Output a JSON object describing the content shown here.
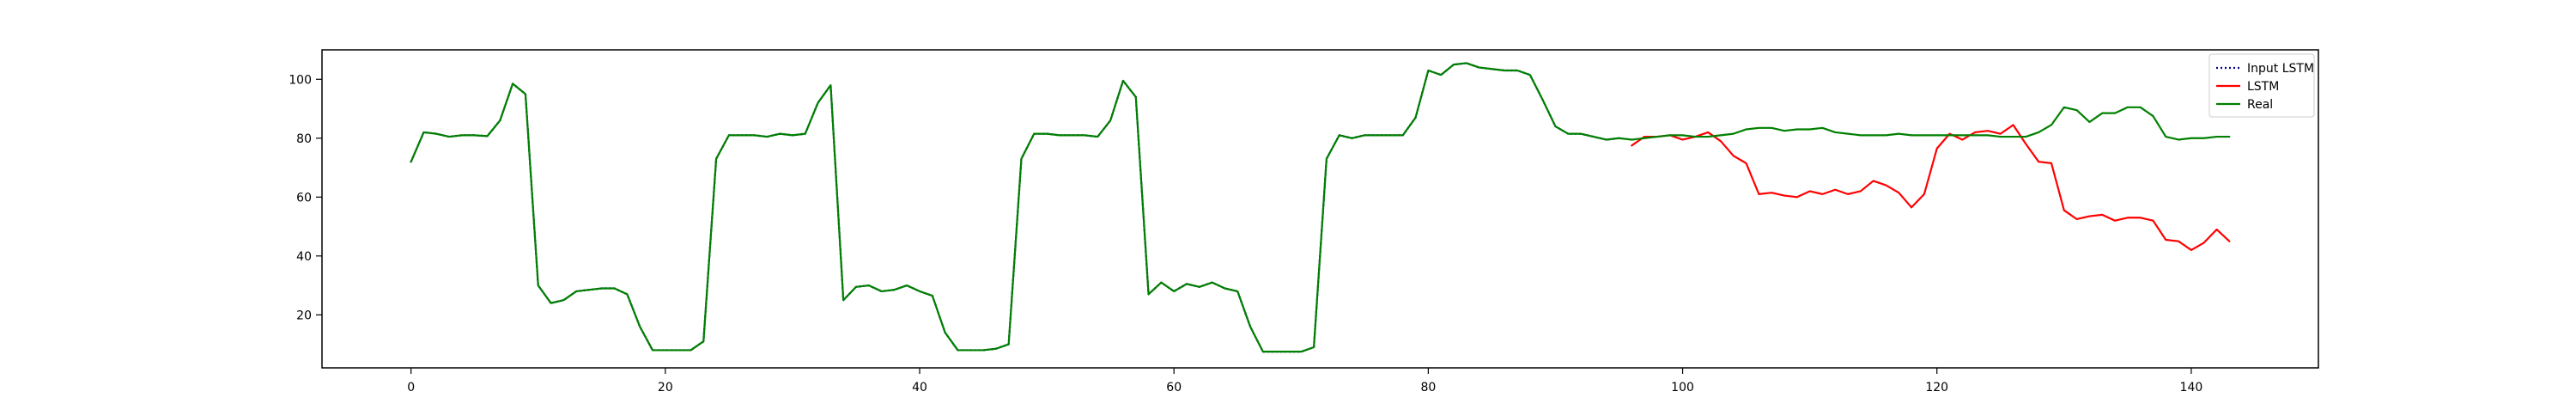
{
  "chart_data": {
    "type": "line",
    "title": "",
    "xlabel": "",
    "ylabel": "",
    "xlim": [
      -7,
      150
    ],
    "ylim": [
      2,
      110
    ],
    "xticks": [
      0,
      20,
      40,
      60,
      80,
      100,
      120,
      140
    ],
    "yticks": [
      20,
      40,
      60,
      80,
      100
    ],
    "grid": false,
    "legend_position": "top-right",
    "series": [
      {
        "name": "Input LSTM",
        "color": "#00008b",
        "style": "dotted",
        "x": [
          0,
          1,
          2,
          3,
          4,
          5,
          6,
          7,
          8,
          9,
          10,
          11,
          12,
          13,
          14,
          15,
          16,
          17,
          18,
          19,
          20,
          21,
          22,
          23,
          24,
          25,
          26,
          27,
          28,
          29,
          30,
          31,
          32,
          33,
          34,
          35,
          36,
          37,
          38,
          39,
          40,
          41,
          42,
          43,
          44,
          45,
          46,
          47,
          48,
          49,
          50,
          51,
          52,
          53,
          54,
          55,
          56,
          57,
          58,
          59,
          60,
          61,
          62,
          63,
          64,
          65,
          66,
          67,
          68,
          69,
          70,
          71,
          72,
          73,
          74,
          75,
          76,
          77,
          78,
          79,
          80,
          81,
          82,
          83,
          84,
          85,
          86,
          87,
          88,
          89,
          90,
          91,
          92,
          93,
          94,
          95
        ],
        "values": [
          72,
          82,
          81.5,
          80.5,
          81,
          81,
          80.7,
          86,
          98.5,
          95,
          30,
          24,
          25,
          28,
          28.5,
          29,
          29,
          27,
          16,
          8,
          8,
          8,
          8,
          11,
          73,
          81,
          81,
          81,
          80.5,
          81.5,
          81,
          81.5,
          92,
          98,
          25,
          29.5,
          30,
          28,
          28.5,
          30,
          28,
          26.5,
          14,
          8,
          8,
          8,
          8.5,
          10,
          73,
          81.5,
          81.5,
          81,
          81,
          81,
          80.5,
          86,
          99.5,
          94,
          27,
          31,
          28,
          30.5,
          29.5,
          31,
          29,
          28,
          16,
          7.5,
          7.5,
          7.5,
          7.5,
          9,
          73,
          81,
          80,
          81,
          81,
          81,
          81,
          87,
          103,
          101.5,
          105,
          105.5,
          104,
          103.5,
          103,
          103,
          101.5,
          93,
          84,
          81.5,
          81.5,
          80.5,
          79.5,
          80
        ]
      },
      {
        "name": "LSTM",
        "color": "#ff0000",
        "style": "solid",
        "x": [
          96,
          97,
          98,
          99,
          100,
          101,
          102,
          103,
          104,
          105,
          106,
          107,
          108,
          109,
          110,
          111,
          112,
          113,
          114,
          115,
          116,
          117,
          118,
          119,
          120,
          121,
          122,
          123,
          124,
          125,
          126,
          127,
          128,
          129,
          130,
          131,
          132,
          133,
          134,
          135,
          136,
          137,
          138,
          139,
          140,
          141,
          142,
          143
        ],
        "values": [
          77.5,
          80.5,
          80.5,
          81,
          79.5,
          80.5,
          82,
          79,
          74,
          71.5,
          61,
          61.5,
          60.5,
          60,
          62,
          61,
          62.5,
          61,
          62,
          65.5,
          64,
          61.5,
          56.5,
          61,
          76.5,
          81.5,
          79.5,
          82,
          82.5,
          81.5,
          84.5,
          78,
          72,
          71.5,
          55.5,
          52.5,
          53.5,
          54,
          52,
          53,
          53,
          52,
          45.5,
          45,
          42,
          44.5,
          49,
          45
        ]
      },
      {
        "name": "Real",
        "color": "#008000",
        "style": "solid",
        "x": [
          0,
          1,
          2,
          3,
          4,
          5,
          6,
          7,
          8,
          9,
          10,
          11,
          12,
          13,
          14,
          15,
          16,
          17,
          18,
          19,
          20,
          21,
          22,
          23,
          24,
          25,
          26,
          27,
          28,
          29,
          30,
          31,
          32,
          33,
          34,
          35,
          36,
          37,
          38,
          39,
          40,
          41,
          42,
          43,
          44,
          45,
          46,
          47,
          48,
          49,
          50,
          51,
          52,
          53,
          54,
          55,
          56,
          57,
          58,
          59,
          60,
          61,
          62,
          63,
          64,
          65,
          66,
          67,
          68,
          69,
          70,
          71,
          72,
          73,
          74,
          75,
          76,
          77,
          78,
          79,
          80,
          81,
          82,
          83,
          84,
          85,
          86,
          87,
          88,
          89,
          90,
          91,
          92,
          93,
          94,
          95,
          96,
          97,
          98,
          99,
          100,
          101,
          102,
          103,
          104,
          105,
          106,
          107,
          108,
          109,
          110,
          111,
          112,
          113,
          114,
          115,
          116,
          117,
          118,
          119,
          120,
          121,
          122,
          123,
          124,
          125,
          126,
          127,
          128,
          129,
          130,
          131,
          132,
          133,
          134,
          135,
          136,
          137,
          138,
          139,
          140,
          141,
          142,
          143
        ],
        "values": [
          72,
          82,
          81.5,
          80.5,
          81,
          81,
          80.7,
          86,
          98.5,
          95,
          30,
          24,
          25,
          28,
          28.5,
          29,
          29,
          27,
          16,
          8,
          8,
          8,
          8,
          11,
          73,
          81,
          81,
          81,
          80.5,
          81.5,
          81,
          81.5,
          92,
          98,
          25,
          29.5,
          30,
          28,
          28.5,
          30,
          28,
          26.5,
          14,
          8,
          8,
          8,
          8.5,
          10,
          73,
          81.5,
          81.5,
          81,
          81,
          81,
          80.5,
          86,
          99.5,
          94,
          27,
          31,
          28,
          30.5,
          29.5,
          31,
          29,
          28,
          16,
          7.5,
          7.5,
          7.5,
          7.5,
          9,
          73,
          81,
          80,
          81,
          81,
          81,
          81,
          87,
          103,
          101.5,
          105,
          105.5,
          104,
          103.5,
          103,
          103,
          101.5,
          93,
          84,
          81.5,
          81.5,
          80.5,
          79.5,
          80,
          79.5,
          80,
          80.5,
          81,
          81,
          80.5,
          80.5,
          81,
          81.5,
          83,
          83.5,
          83.5,
          82.5,
          83,
          83,
          83.5,
          82,
          81.5,
          81,
          81,
          81,
          81.5,
          81,
          81,
          81,
          81,
          81,
          81,
          81,
          80.5,
          80.5,
          80.5,
          82,
          84.5,
          90.5,
          89.5,
          85.5,
          88.5,
          88.5,
          90.5,
          90.5,
          87.5,
          80.5,
          79.5,
          80,
          80,
          80.5,
          80.5
        ]
      }
    ]
  }
}
